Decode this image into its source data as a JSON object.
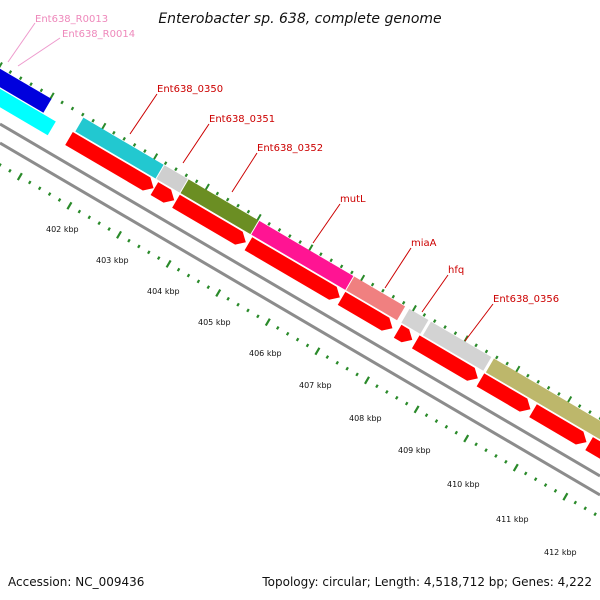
{
  "title": "Enterobacter sp. 638, complete genome",
  "footer": {
    "accession": "Accession: NC_009436",
    "summary": "Topology: circular; Length: 4,518,712 bp; Genes: 4,222"
  },
  "rna_labels": [
    "Ent638_R0013",
    "Ent638_R0014"
  ],
  "gene_labels": [
    "Ent638_0350",
    "Ent638_0351",
    "Ent638_0352",
    "mutL",
    "miaA",
    "hfq",
    "Ent638_0356"
  ],
  "kbp_labels": [
    "402 kbp",
    "403 kbp",
    "404 kbp",
    "405 kbp",
    "406 kbp",
    "407 kbp",
    "408 kbp",
    "409 kbp",
    "410 kbp",
    "411 kbp",
    "412 kbp"
  ],
  "colors": {
    "outer_dots": "#2a8a2a",
    "inner_dots": "#2a8a2a",
    "backbone": "#999999",
    "cds_forward": "#ff0000",
    "cds_0350": "#22c8d0",
    "cds_0351": "#cfcfcf",
    "cds_0352": "#6b8e23",
    "cds_mutL": "#ff1493",
    "cds_miaA": "#f08080",
    "cds_hfq": "#d3d3d3",
    "cds_0356": "#bdb76b",
    "cds_left_blue": "#0000dd",
    "cds_left_cyan": "#00ffff"
  }
}
